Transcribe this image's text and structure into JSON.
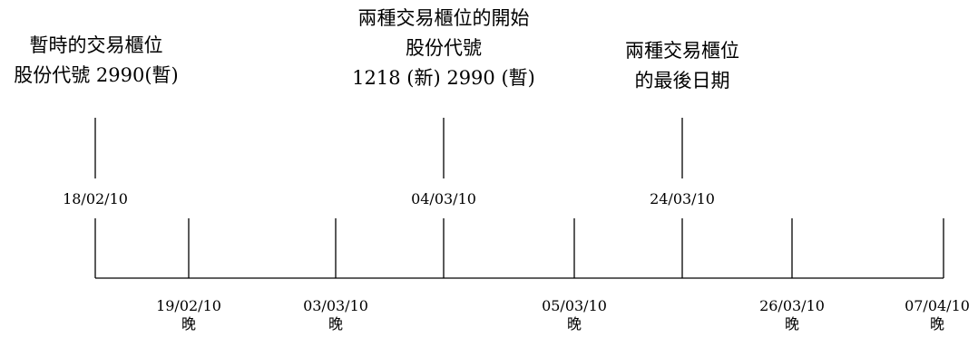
{
  "annotations": {
    "temp_counter": {
      "line1": "暫時的交易櫃位",
      "line2": "股份代號 2990(暫)"
    },
    "parallel_start": {
      "line1": "兩種交易櫃位的開始",
      "line2": "股份代號",
      "line3": "1218 (新) 2990 (暫)"
    },
    "parallel_end": {
      "line1": "兩種交易櫃位",
      "line2": "的最後日期"
    }
  },
  "top_dates": [
    "18/02/10",
    "04/03/10",
    "24/03/10"
  ],
  "bottom_dates": [
    {
      "date": "19/02/10",
      "note": "晚"
    },
    {
      "date": "03/03/10",
      "note": "晚"
    },
    {
      "date": "05/03/10",
      "note": "晚"
    },
    {
      "date": "26/03/10",
      "note": "晚"
    },
    {
      "date": "07/04/10",
      "note": "晚"
    }
  ]
}
